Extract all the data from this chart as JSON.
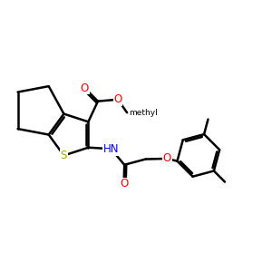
{
  "bg": "#ffffff",
  "bc": "#000000",
  "sc": "#aaaa00",
  "oc": "#ff0000",
  "nc": "#0000ff",
  "lw": 1.8,
  "afs": 8.5,
  "figsize": [
    3.0,
    3.0
  ],
  "dpi": 100,
  "xlim": [
    0,
    10
  ],
  "ylim": [
    1,
    9
  ]
}
